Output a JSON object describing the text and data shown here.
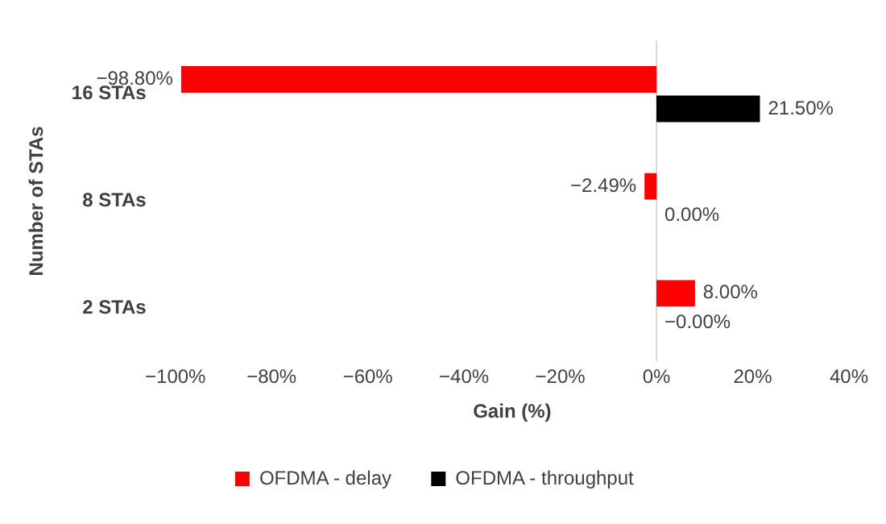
{
  "chart_data": {
    "type": "bar",
    "orientation": "horizontal",
    "xlabel": "Gain (%)",
    "ylabel": "Number of STAs",
    "categories": [
      "16 STAs",
      "8 STAs",
      "2 STAs"
    ],
    "series": [
      {
        "name": "OFDMA - delay",
        "color": "#ff0000",
        "values": [
          -98.8,
          -2.49,
          8.0
        ],
        "value_labels": [
          "−98.80%",
          "−2.49%",
          "8.00%"
        ]
      },
      {
        "name": "OFDMA - throughput",
        "color": "#000000",
        "values": [
          21.5,
          0.0,
          -0.0
        ],
        "value_labels": [
          "21.50%",
          "0.00%",
          "−0.00%"
        ]
      }
    ],
    "xlim": [
      -100,
      40
    ],
    "xticks": [
      {
        "value": -100,
        "label": "−100%"
      },
      {
        "value": -80,
        "label": "−80%"
      },
      {
        "value": -60,
        "label": "−60%"
      },
      {
        "value": -40,
        "label": "−40%"
      },
      {
        "value": -20,
        "label": "−20%"
      },
      {
        "value": 0,
        "label": "0%"
      },
      {
        "value": 20,
        "label": "20%"
      },
      {
        "value": 40,
        "label": "40%"
      }
    ],
    "ref_lines": [
      {
        "axis": "x",
        "value": 0,
        "color": "#d9d9d9"
      }
    ],
    "grid": false,
    "legend": "bottom"
  }
}
